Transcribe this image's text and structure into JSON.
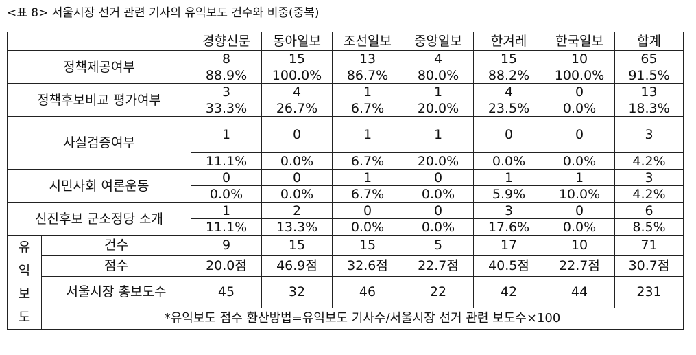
{
  "caption": "<표 8> 서울시장 선거 관련 기사의 유익보도 건수와 비중(중복)",
  "columns": [
    "경향신문",
    "동아일보",
    "조선일보",
    "중앙일보",
    "한겨레",
    "한국일보",
    "합계"
  ],
  "rows": [
    {
      "label": "정책제공여부",
      "counts": [
        "8",
        "15",
        "13",
        "4",
        "15",
        "10",
        "65"
      ],
      "percents": [
        "88.9%",
        "100.0%",
        "86.7%",
        "80.0%",
        "88.2%",
        "100.0%",
        "91.5%"
      ]
    },
    {
      "label": "정책후보비교 평가여부",
      "counts": [
        "3",
        "4",
        "1",
        "1",
        "4",
        "0",
        "13"
      ],
      "percents": [
        "33.3%",
        "26.7%",
        "6.7%",
        "20.0%",
        "23.5%",
        "0.0%",
        "18.3%"
      ]
    },
    {
      "label": "사실검증여부",
      "counts": [
        "1",
        "0",
        "1",
        "1",
        "0",
        "0",
        "3"
      ],
      "percents": [
        "11.1%",
        "0.0%",
        "6.7%",
        "20.0%",
        "0.0%",
        "0.0%",
        "4.2%"
      ]
    },
    {
      "label": "시민사회 여론운동",
      "counts": [
        "0",
        "0",
        "1",
        "0",
        "1",
        "1",
        "3"
      ],
      "percents": [
        "0.0%",
        "0.0%",
        "6.7%",
        "0.0%",
        "5.9%",
        "10.0%",
        "4.2%"
      ]
    },
    {
      "label": "신진후보 군소정당 소개",
      "counts": [
        "1",
        "2",
        "0",
        "0",
        "3",
        "0",
        "6"
      ],
      "percents": [
        "11.1%",
        "13.3%",
        "0.0%",
        "0.0%",
        "17.6%",
        "0.0%",
        "8.5%"
      ]
    }
  ],
  "useful": {
    "group_chars": [
      "유",
      "익",
      "보",
      "도"
    ],
    "count_label": "건수",
    "counts": [
      "9",
      "15",
      "15",
      "5",
      "17",
      "10",
      "71"
    ],
    "score_label": "점수",
    "scores": [
      "20.0점",
      "46.9점",
      "32.6점",
      "22.7점",
      "40.5점",
      "22.7점",
      "30.7점"
    ],
    "total_label": "서울시장 총보도수",
    "totals": [
      "45",
      "32",
      "46",
      "22",
      "42",
      "44",
      "231"
    ],
    "note": "*유익보도 점수 환산방법=유익보도 기사수/서울시장 선거 관련 보도수×100"
  }
}
